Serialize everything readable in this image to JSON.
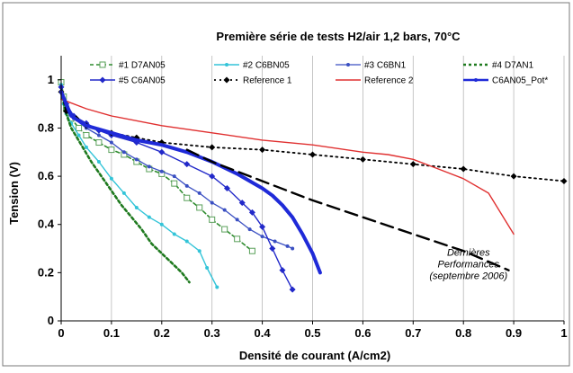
{
  "chart_data": {
    "type": "line",
    "title": "Première série de tests H2/air 1,2 bars, 70°C",
    "xlabel": "Densité de courant (A/cm2)",
    "ylabel": "Tension (V)",
    "xlim": [
      0,
      1
    ],
    "ylim": [
      0,
      1.1
    ],
    "x_ticks": [
      0,
      0.1,
      0.2,
      0.3,
      0.4,
      0.5,
      0.6,
      0.7,
      0.8,
      0.9,
      1
    ],
    "x_tick_labels": [
      "0",
      "0.1",
      "0.2",
      "0.3",
      "0.4",
      "0.5",
      "0.6",
      "0.7",
      "0.8",
      "0.9",
      "1"
    ],
    "y_ticks": [
      0,
      0.2,
      0.4,
      0.6,
      0.8,
      1
    ],
    "y_tick_labels": [
      "0",
      "0.2",
      "0.4",
      "0.6",
      "0.8",
      "1"
    ],
    "grid": "vertical",
    "legend_position": "top",
    "annotation": {
      "lines": [
        "Dernières",
        "Performances",
        "(septembre 2006)"
      ],
      "x": 0.81,
      "y": 0.27
    },
    "series": [
      {
        "name": "#1 D7AN05",
        "color": "#2e8b2e",
        "dash": "4,3",
        "width": 1.6,
        "marker": "square-open",
        "marker_color": "#5aa05a",
        "x": [
          0,
          0.005,
          0.01,
          0.02,
          0.035,
          0.05,
          0.075,
          0.1,
          0.125,
          0.15,
          0.175,
          0.2,
          0.225,
          0.25,
          0.275,
          0.3,
          0.325,
          0.35,
          0.38
        ],
        "y": [
          0.99,
          0.93,
          0.88,
          0.84,
          0.8,
          0.77,
          0.74,
          0.71,
          0.69,
          0.66,
          0.63,
          0.61,
          0.57,
          0.51,
          0.47,
          0.42,
          0.38,
          0.34,
          0.29
        ]
      },
      {
        "name": "#2 C6BN05",
        "color": "#33c4d8",
        "dash": "",
        "width": 1.4,
        "marker": "dot",
        "marker_color": "#33c4d8",
        "x": [
          0,
          0.005,
          0.01,
          0.02,
          0.035,
          0.05,
          0.075,
          0.1,
          0.125,
          0.15,
          0.175,
          0.2,
          0.225,
          0.25,
          0.275,
          0.29,
          0.31
        ],
        "y": [
          0.98,
          0.9,
          0.86,
          0.82,
          0.77,
          0.72,
          0.66,
          0.59,
          0.53,
          0.47,
          0.43,
          0.4,
          0.36,
          0.33,
          0.29,
          0.22,
          0.14
        ]
      },
      {
        "name": "#3 C6BN1",
        "color": "#3a4fc2",
        "dash": "",
        "width": 1.3,
        "marker": "dot",
        "marker_color": "#3a4fc2",
        "x": [
          0,
          0.01,
          0.025,
          0.05,
          0.075,
          0.1,
          0.125,
          0.15,
          0.175,
          0.2,
          0.225,
          0.25,
          0.275,
          0.3,
          0.325,
          0.35,
          0.375,
          0.4,
          0.425,
          0.45,
          0.46
        ],
        "y": [
          0.97,
          0.88,
          0.84,
          0.8,
          0.77,
          0.74,
          0.7,
          0.67,
          0.64,
          0.62,
          0.6,
          0.56,
          0.53,
          0.49,
          0.46,
          0.42,
          0.38,
          0.35,
          0.33,
          0.31,
          0.3
        ]
      },
      {
        "name": "#4 D7AN1",
        "color": "#1f7a1f",
        "dash": "3,3",
        "width": 2.6,
        "marker": "none",
        "marker_color": "#1f7a1f",
        "x": [
          0,
          0.01,
          0.02,
          0.04,
          0.06,
          0.08,
          0.1,
          0.12,
          0.14,
          0.16,
          0.18,
          0.2,
          0.22,
          0.24,
          0.255
        ],
        "y": [
          0.95,
          0.86,
          0.8,
          0.73,
          0.66,
          0.6,
          0.54,
          0.48,
          0.43,
          0.38,
          0.32,
          0.28,
          0.24,
          0.2,
          0.16
        ]
      },
      {
        "name": "#5 C6AN05",
        "color": "#2229c9",
        "dash": "",
        "width": 1.4,
        "marker": "diamond",
        "marker_color": "#2229c9",
        "x": [
          0,
          0.01,
          0.025,
          0.05,
          0.075,
          0.1,
          0.15,
          0.2,
          0.25,
          0.3,
          0.33,
          0.36,
          0.38,
          0.4,
          0.42,
          0.44,
          0.46
        ],
        "y": [
          0.97,
          0.9,
          0.85,
          0.82,
          0.79,
          0.77,
          0.74,
          0.7,
          0.65,
          0.6,
          0.55,
          0.49,
          0.45,
          0.39,
          0.3,
          0.21,
          0.13
        ]
      },
      {
        "name": "Reference 1",
        "color": "#000000",
        "dash": "2,4",
        "width": 1.8,
        "marker": "diamond",
        "marker_color": "#000000",
        "x": [
          0,
          0.01,
          0.03,
          0.05,
          0.1,
          0.15,
          0.2,
          0.3,
          0.4,
          0.5,
          0.6,
          0.7,
          0.8,
          0.9,
          1
        ],
        "y": [
          0.95,
          0.87,
          0.84,
          0.81,
          0.78,
          0.76,
          0.74,
          0.72,
          0.71,
          0.69,
          0.67,
          0.65,
          0.63,
          0.6,
          0.58
        ]
      },
      {
        "name": "Reference 2",
        "color": "#e03030",
        "dash": "",
        "width": 1.4,
        "marker": "none",
        "marker_color": "#e03030",
        "x": [
          0,
          0.05,
          0.1,
          0.2,
          0.3,
          0.4,
          0.5,
          0.6,
          0.65,
          0.7,
          0.75,
          0.8,
          0.85,
          0.9
        ],
        "y": [
          0.92,
          0.88,
          0.85,
          0.81,
          0.78,
          0.75,
          0.73,
          0.7,
          0.69,
          0.67,
          0.63,
          0.59,
          0.53,
          0.36
        ]
      },
      {
        "name": "C6AN05_Pot*",
        "color": "#1f2ad8",
        "dash": "",
        "width": 4,
        "marker": "none",
        "marker_color": "#1f2ad8",
        "x": [
          0,
          0.02,
          0.05,
          0.1,
          0.15,
          0.2,
          0.25,
          0.3,
          0.35,
          0.4,
          0.42,
          0.44,
          0.46,
          0.48,
          0.5,
          0.515
        ],
        "y": [
          0.95,
          0.85,
          0.81,
          0.78,
          0.75,
          0.73,
          0.7,
          0.66,
          0.61,
          0.55,
          0.52,
          0.48,
          0.43,
          0.36,
          0.28,
          0.2
        ]
      },
      {
        "name": "",
        "color": "#000000",
        "dash": "14,7",
        "width": 2.4,
        "marker": "none",
        "marker_color": "#000000",
        "x": [
          0.25,
          0.3,
          0.35,
          0.4,
          0.5,
          0.6,
          0.7,
          0.8,
          0.89
        ],
        "y": [
          0.71,
          0.66,
          0.62,
          0.58,
          0.5,
          0.43,
          0.36,
          0.29,
          0.21
        ]
      }
    ]
  }
}
